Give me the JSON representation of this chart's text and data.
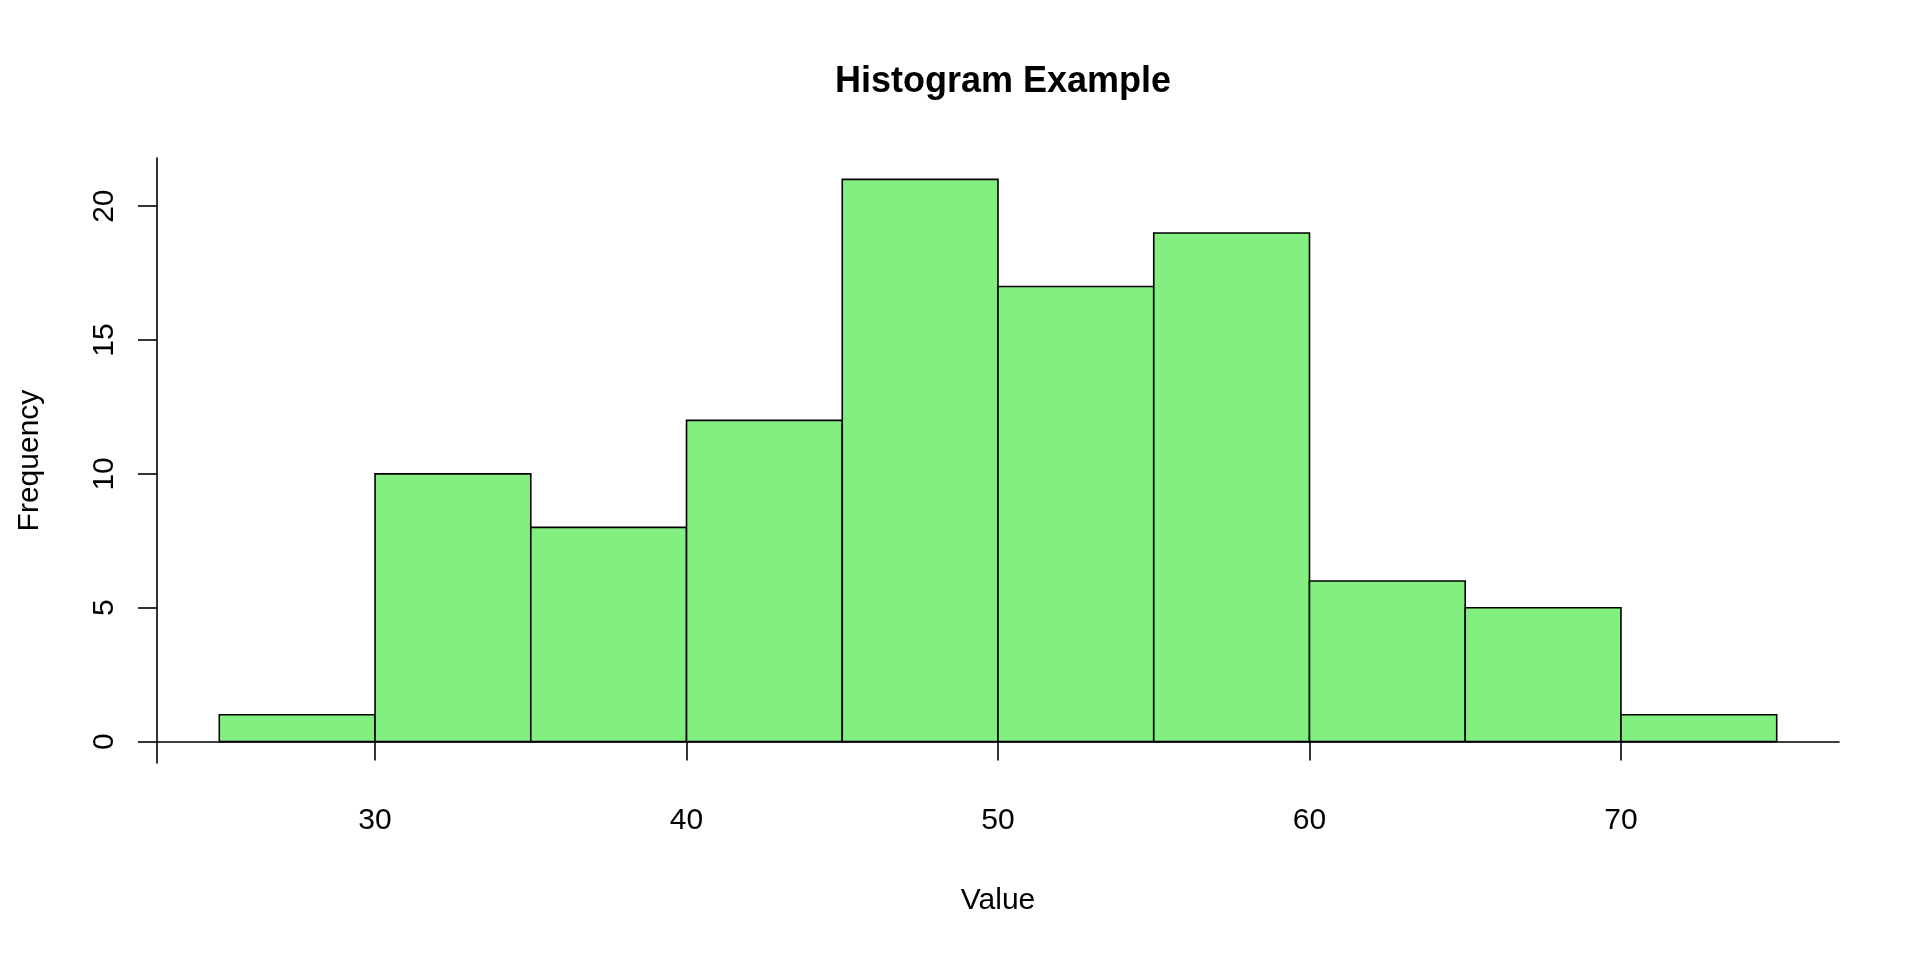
{
  "chart_data": {
    "type": "histogram",
    "title": "Histogram Example",
    "xlabel": "Value",
    "ylabel": "Frequency",
    "bins": [
      25,
      30,
      35,
      40,
      45,
      50,
      55,
      60,
      65,
      70,
      75
    ],
    "values": [
      1,
      10,
      8,
      12,
      21,
      17,
      19,
      6,
      5,
      1
    ],
    "color": "#83ef80",
    "xlim": [
      23,
      77
    ],
    "ylim": [
      -0.8,
      21.8
    ],
    "xticks": [
      30,
      40,
      50,
      60,
      70
    ],
    "yticks": [
      0,
      5,
      10,
      15,
      20
    ]
  }
}
